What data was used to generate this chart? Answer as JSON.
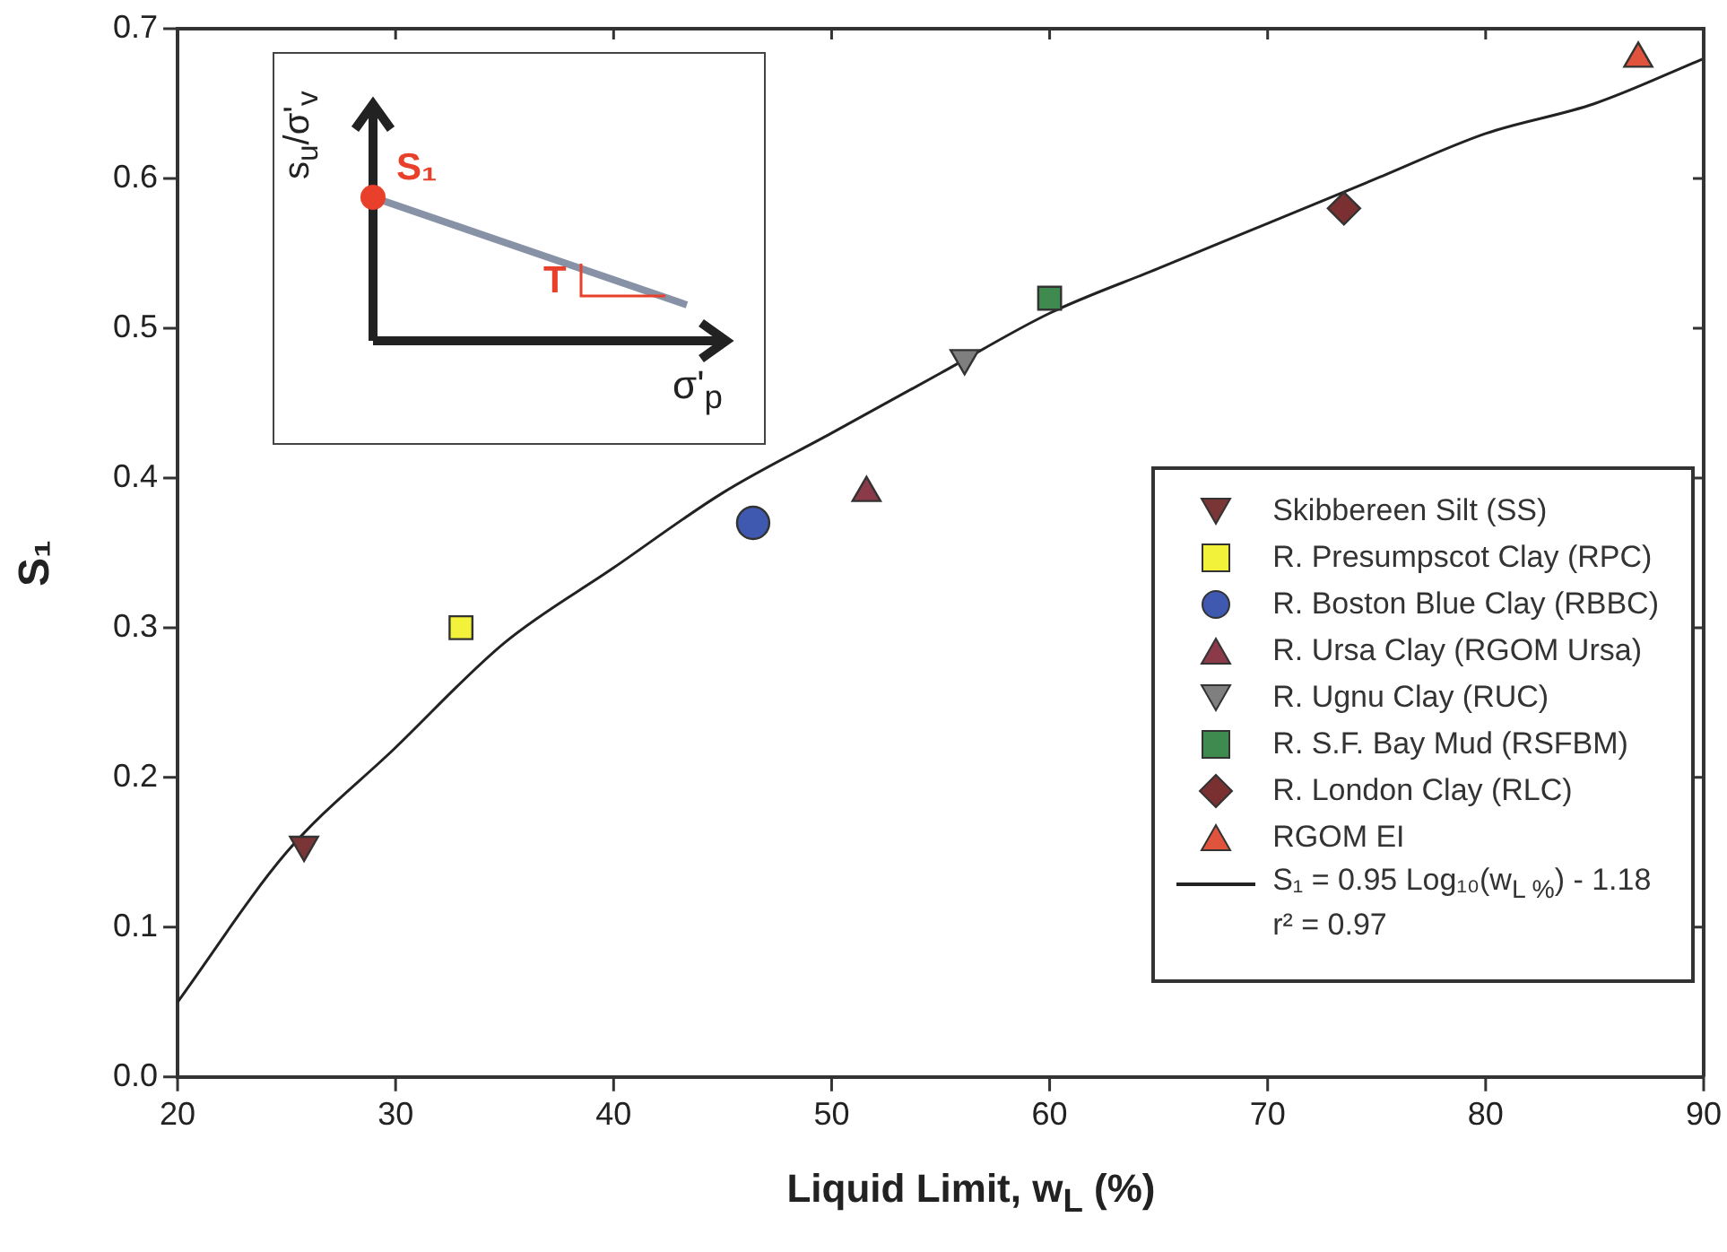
{
  "chart_data": {
    "type": "scatter",
    "xlabel": "Liquid Limit, w$_{L}$ (%)",
    "ylabel": "S₁",
    "xlim": [
      20,
      90
    ],
    "xticks": [
      20,
      30,
      40,
      50,
      60,
      70,
      80,
      90
    ],
    "ylim": [
      0,
      0.7
    ],
    "yticks": [
      {
        "value": 0,
        "label": "0.0"
      },
      0.1,
      0.2,
      0.3,
      0.4,
      0.5,
      0.6,
      0.7
    ],
    "legend": "bottom right",
    "grid": false,
    "series": [
      {
        "name": "Skibbereen Silt (SS)",
        "color": "#7a3636",
        "marker": "triangle_down",
        "x": [
          25.8
        ],
        "values": [
          0.155
        ]
      },
      {
        "name": "R. Presumpscot Clay (RPC)",
        "color": "#f2f23a",
        "marker": "square",
        "x": [
          33
        ],
        "values": [
          0.3
        ]
      },
      {
        "name": "R. Boston Blue Clay (RBBC)",
        "color": "#3f58b0",
        "marker": "circle",
        "x": [
          46.4
        ],
        "values": [
          0.37
        ]
      },
      {
        "name": "R. Ursa Clay (RGOM Ursa)",
        "color": "#8a3a48",
        "marker": "triangle",
        "x": [
          51.6
        ],
        "values": [
          0.39
        ]
      },
      {
        "name": "R. Ugnu Clay (RUC)",
        "color": "#7f7f7f",
        "marker": "triangle_down",
        "x": [
          56.1
        ],
        "values": [
          0.48
        ]
      },
      {
        "name": "R. S.F. Bay Mud (RSFBM)",
        "color": "#3f8a4f",
        "marker": "square",
        "x": [
          60
        ],
        "values": [
          0.52
        ]
      },
      {
        "name": "R. London Clay (RLC)",
        "color": "#7a3030",
        "marker": "diamond",
        "x": [
          73.5
        ],
        "values": [
          0.58
        ]
      },
      {
        "name": "RGOM EI",
        "color": "#e0533d",
        "marker": "triangle",
        "x": [
          87
        ],
        "values": [
          0.68
        ]
      },
      {
        "name": "S₁ = 0.95 Log₁₀(w$_{L %}$) - 1.18",
        "type": "line",
        "color": "#222222",
        "marker": "none",
        "x": [
          20,
          25,
          30,
          35,
          40,
          45,
          50,
          55,
          60,
          65,
          70,
          75,
          80,
          85,
          90
        ],
        "values": [
          0.05,
          0.15,
          0.22,
          0.29,
          0.34,
          0.39,
          0.43,
          0.47,
          0.51,
          0.54,
          0.57,
          0.6,
          0.63,
          0.65,
          0.68
        ]
      }
    ],
    "annotations": [
      "r² = 0.97",
      "s$_{u}$/σ'$_{v}$",
      "S₁",
      "T",
      "σ'$_{p}$"
    ]
  }
}
